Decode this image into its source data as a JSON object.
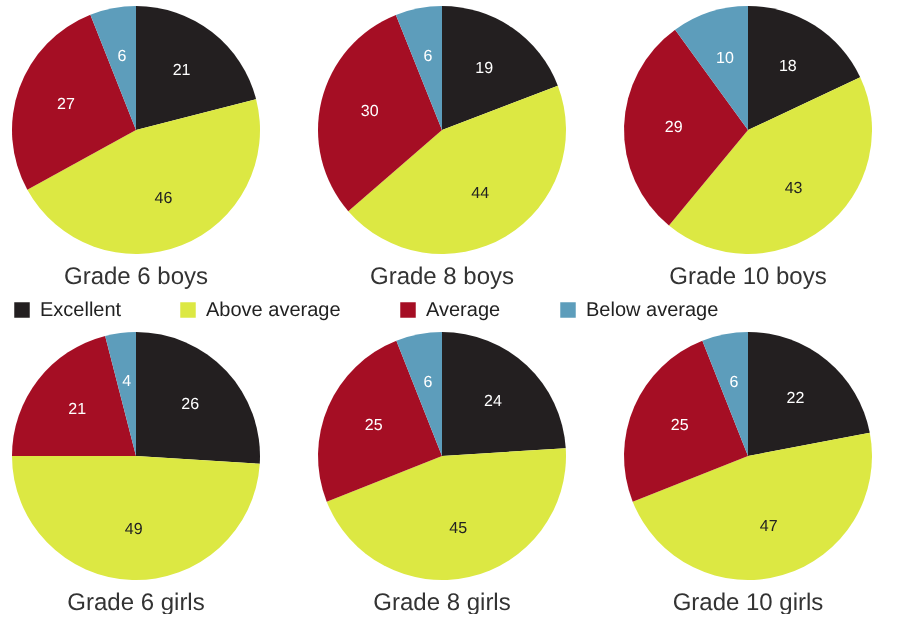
{
  "chart_data": [
    {
      "type": "pie",
      "title": "Grade 6 boys",
      "categories": [
        "Excellent",
        "Above average",
        "Average",
        "Below average"
      ],
      "values": [
        21,
        46,
        27,
        6
      ],
      "colors": [
        "#231f20",
        "#dce843",
        "#a50e24",
        "#5d9dbb"
      ],
      "data_labels": true,
      "legend": "bottom"
    },
    {
      "type": "pie",
      "title": "Grade 8 boys",
      "categories": [
        null,
        null,
        null,
        null
      ],
      "values": [
        19,
        44,
        30,
        6
      ],
      "colors": [
        "#231f20",
        "#dce843",
        "#a50e24",
        "#5d9dbb"
      ],
      "data_labels": true
    },
    {
      "type": "pie",
      "title": "Grade 10 boys",
      "categories": [
        null,
        null,
        null,
        null
      ],
      "values": [
        18,
        43,
        29,
        10
      ],
      "colors": [
        "#231f20",
        "#dce843",
        "#a50e24",
        "#5d9dbb"
      ],
      "data_labels": true
    },
    {
      "type": "pie",
      "title": "Grade 6 girls",
      "categories": [
        null,
        null,
        null,
        null
      ],
      "values": [
        26,
        49,
        21,
        4
      ],
      "colors": [
        "#231f20",
        "#dce843",
        "#a50e24",
        "#5d9dbb"
      ],
      "data_labels": true
    },
    {
      "type": "pie",
      "title": "Grade 8 girls",
      "categories": [
        null,
        null,
        null,
        null
      ],
      "values": [
        24,
        45,
        25,
        6
      ],
      "colors": [
        "#231f20",
        "#dce843",
        "#a50e24",
        "#5d9dbb"
      ],
      "data_labels": true
    },
    {
      "type": "pie",
      "title": "Grade 10 girls",
      "categories": [
        null,
        null,
        null,
        null
      ],
      "values": [
        22,
        47,
        25,
        6
      ],
      "colors": [
        "#231f20",
        "#dce843",
        "#a50e24",
        "#5d9dbb"
      ],
      "data_labels": true
    }
  ]
}
